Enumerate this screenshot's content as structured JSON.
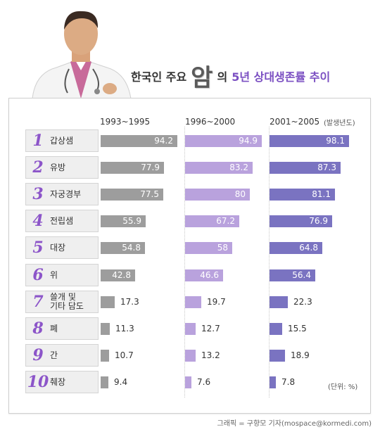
{
  "header": {
    "title_before": "한국인 주요",
    "title_big": "암",
    "title_middle": "의",
    "title_accent": "5년 상대생존률 추이"
  },
  "chart_data": {
    "type": "bar",
    "categories": [
      "갑상샘",
      "유방",
      "자궁경부",
      "전립샘",
      "대장",
      "위",
      "쓸개 및\n기타 담도",
      "폐",
      "간",
      "췌장"
    ],
    "ranks": [
      "1",
      "2",
      "3",
      "4",
      "5",
      "6",
      "7",
      "8",
      "9",
      "10"
    ],
    "series": [
      {
        "name": "1993~1995",
        "values": [
          94.2,
          77.9,
          77.5,
          55.9,
          54.8,
          42.8,
          17.3,
          11.3,
          10.7,
          9.4
        ]
      },
      {
        "name": "1996~2000",
        "values": [
          94.9,
          83.2,
          80,
          67.2,
          58,
          46.6,
          19.7,
          12.7,
          13.2,
          7.6
        ]
      },
      {
        "name": "2001~2005",
        "values": [
          98.1,
          87.3,
          81.1,
          76.9,
          64.8,
          56.4,
          22.3,
          15.5,
          18.9,
          7.8
        ]
      }
    ],
    "value_labels": [
      [
        "94.2",
        "77.9",
        "77.5",
        "55.9",
        "54.8",
        "42.8",
        "17.3",
        "11.3",
        "10.7",
        "9.4"
      ],
      [
        "94.9",
        "83.2",
        "80",
        "67.2",
        "58",
        "46.6",
        "19.7",
        "12.7",
        "13.2",
        "7.6"
      ],
      [
        "98.1",
        "87.3",
        "81.1",
        "76.9",
        "64.8",
        "56.4",
        "22.3",
        "15.5",
        "18.9",
        "7.8"
      ]
    ],
    "colors": [
      "#9d9d9d",
      "#b9a2dd",
      "#7a73c1"
    ],
    "xlim": [
      0,
      100
    ],
    "year_axis_note": "(발생년도)",
    "unit_note": "(단위: %)"
  },
  "credit": "그래픽 = 구향모 기자(mospace@kormedi.com)"
}
